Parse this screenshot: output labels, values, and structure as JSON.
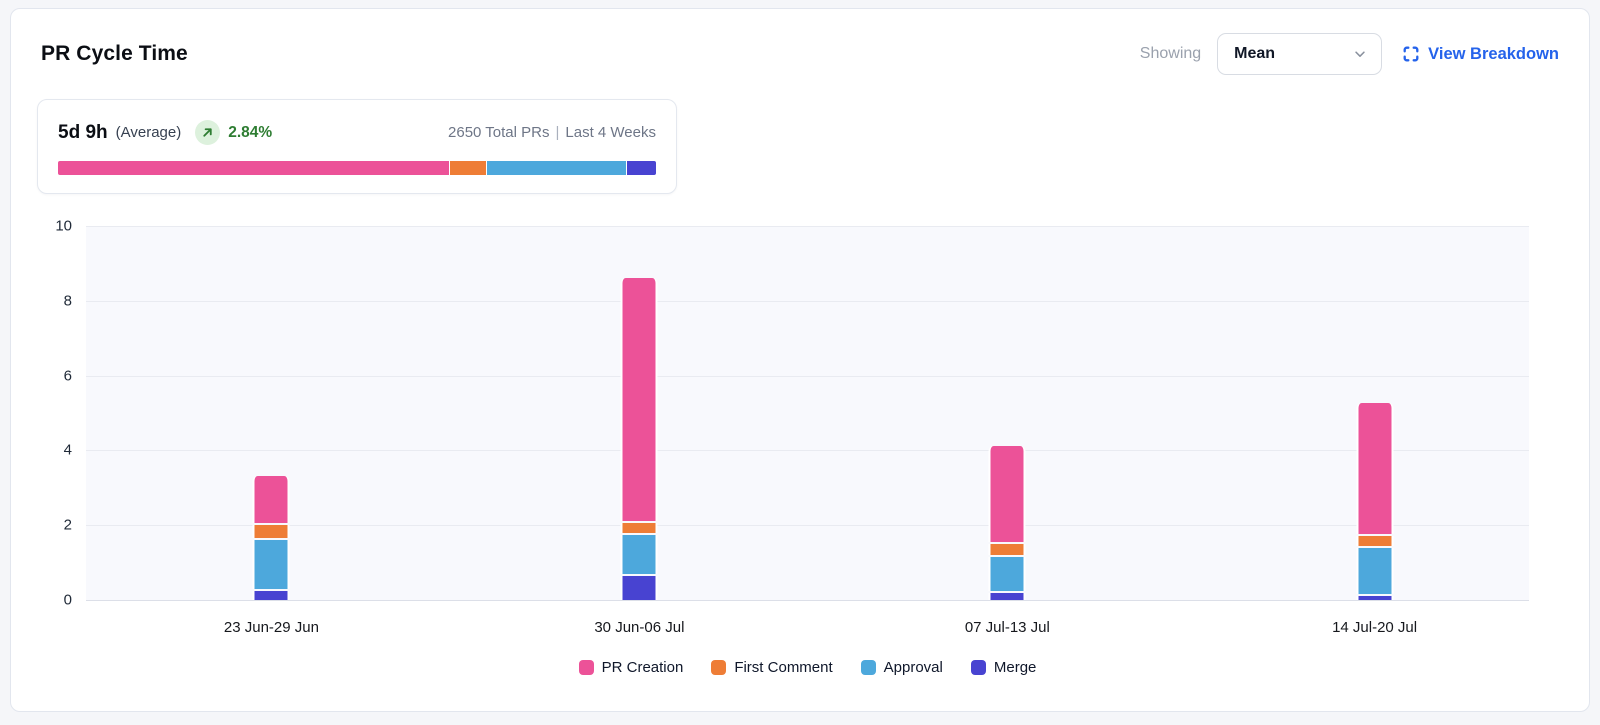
{
  "header": {
    "title": "PR Cycle Time",
    "showing_label": "Showing",
    "metric_select": {
      "value": "Mean"
    },
    "view_breakdown_label": "View Breakdown"
  },
  "summary": {
    "value": "5d 9h",
    "value_suffix": "(Average)",
    "trend_pct": "2.84%",
    "total_prs": "2650 Total PRs",
    "separator": "|",
    "period": "Last 4 Weeks",
    "distribution": [
      {
        "name": "PR Creation",
        "color": "#ec5298",
        "pct": 65.7
      },
      {
        "name": "First Comment",
        "color": "#ee7d36",
        "pct": 6.0
      },
      {
        "name": "Approval",
        "color": "#4da8dc",
        "pct": 23.4
      },
      {
        "name": "Merge",
        "color": "#4843d1",
        "pct": 4.9
      }
    ]
  },
  "colors": {
    "accent_link": "#2563eb",
    "trend_green": "#2e7d32",
    "trend_green_bg": "#ddf1dd",
    "plot_bg": "#f8f9fd",
    "gridline": "#e9ebf1"
  },
  "chart_data": {
    "type": "bar",
    "stacked": true,
    "title": "PR Cycle Time",
    "xlabel": "",
    "ylabel": "",
    "ylim": [
      0,
      10
    ],
    "yticks": [
      0,
      2,
      4,
      6,
      8,
      10
    ],
    "grid": true,
    "legend_position": "bottom",
    "categories": [
      "23 Jun-29 Jun",
      "30 Jun-06 Jul",
      "07 Jul-13 Jul",
      "14 Jul-20 Jul"
    ],
    "series": [
      {
        "name": "PR Creation",
        "color": "#ec5298",
        "values": [
          1.3,
          6.55,
          2.6,
          3.55
        ]
      },
      {
        "name": "First Comment",
        "color": "#ee7d36",
        "values": [
          0.4,
          0.3,
          0.35,
          0.3
        ]
      },
      {
        "name": "Approval",
        "color": "#4da8dc",
        "values": [
          1.35,
          1.1,
          0.95,
          1.3
        ]
      },
      {
        "name": "Merge",
        "color": "#4843d1",
        "values": [
          0.3,
          0.7,
          0.25,
          0.15
        ]
      }
    ],
    "stack_order_bottom_to_top": [
      "Merge",
      "Approval",
      "First Comment",
      "PR Creation"
    ],
    "bar_centers_pct": [
      12.85,
      38.35,
      63.85,
      89.3
    ],
    "totals": [
      3.35,
      8.65,
      4.15,
      5.3
    ]
  }
}
